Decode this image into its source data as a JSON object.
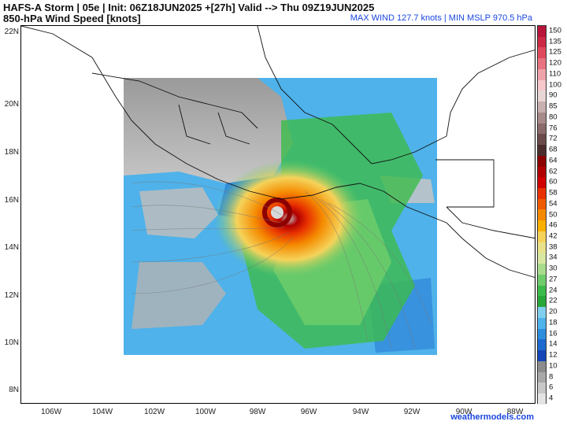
{
  "header": {
    "title_line1": "HAFS-A Storm | 05e | Init: 06Z18JUN2025 +[27h] Valid --> Thu 09Z19JUN2025",
    "title_line2": "850-hPa Wind Speed [knots]",
    "max_wind": "MAX WIND 127.7 knots | MIN MSLP 970.5 hPa"
  },
  "map": {
    "lat_labels": [
      "22N",
      "20N",
      "18N",
      "16N",
      "14N",
      "12N",
      "10N",
      "8N"
    ],
    "lon_labels": [
      "106W",
      "104W",
      "102W",
      "100W",
      "98W",
      "96W",
      "94W",
      "92W",
      "90W",
      "88W"
    ],
    "storm_center": {
      "lat": 15.4,
      "lon": -97.4
    }
  },
  "colorbar": {
    "levels": [
      "150",
      "135",
      "125",
      "120",
      "110",
      "100",
      "90",
      "85",
      "80",
      "76",
      "72",
      "68",
      "64",
      "62",
      "60",
      "58",
      "54",
      "50",
      "46",
      "42",
      "38",
      "34",
      "30",
      "27",
      "24",
      "22",
      "20",
      "18",
      "16",
      "14",
      "12",
      "10",
      "8",
      "6",
      "4"
    ],
    "colors": [
      "#b8153a",
      "#cc2a44",
      "#de4a5c",
      "#e8727f",
      "#f0a2aa",
      "#f6c8cc",
      "#e8d6d6",
      "#c8b0b0",
      "#a88a8a",
      "#8a6a6a",
      "#6a4a4a",
      "#4a2c2c",
      "#8c0000",
      "#b00000",
      "#d00000",
      "#e83000",
      "#f05a00",
      "#f58a00",
      "#f9b000",
      "#f5d35a",
      "#eae28a",
      "#d8e8a0",
      "#a8dc8c",
      "#6fcc6a",
      "#3cbb4a",
      "#29a83a",
      "#7fd0f0",
      "#4fb2ea",
      "#2e8ede",
      "#1c6ad0",
      "#1446b8",
      "#8c8c8c",
      "#a8a8a8",
      "#c8c8c8",
      "#e4e4e4"
    ]
  },
  "footer": {
    "watermark": "weathermodels.com"
  }
}
